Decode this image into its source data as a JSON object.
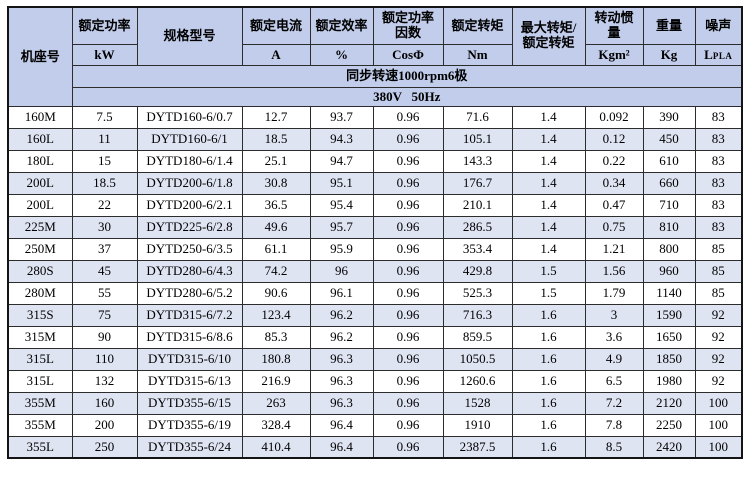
{
  "colors": {
    "header_bg": "#c1cdea",
    "alt_row_bg": "#dfe4f3",
    "border": "#2c2c2c",
    "outer_border": "#141414"
  },
  "table": {
    "header": {
      "frame": "机座号",
      "power_label": "额定功率",
      "power_unit": "kW",
      "model": "规格型号",
      "current_label": "额定电流",
      "current_unit": "A",
      "efficiency_label": "额定效率",
      "efficiency_unit": "%",
      "power_factor_label": "额定功率因数",
      "power_factor_unit": "CosΦ",
      "torque_label": "额定转矩",
      "torque_unit": "Nm",
      "max_torque_ratio": "最大转矩/额定转矩",
      "inertia_label": "转动惯量",
      "inertia_unit": "Kgm²",
      "weight_label": "重量",
      "weight_unit": "Kg",
      "noise_label": "噪声",
      "noise_unit_main": "L",
      "noise_unit_sub": "PLA"
    },
    "banners": {
      "speed": "同步转速1000rpm6极",
      "voltage": "380V   50Hz"
    },
    "rows": [
      [
        "160M",
        "7.5",
        "DYTD160-6/0.7",
        "12.7",
        "93.7",
        "0.96",
        "71.6",
        "1.4",
        "0.092",
        "390",
        "83"
      ],
      [
        "160L",
        "11",
        "DYTD160-6/1",
        "18.5",
        "94.3",
        "0.96",
        "105.1",
        "1.4",
        "0.12",
        "450",
        "83"
      ],
      [
        "180L",
        "15",
        "DYTD180-6/1.4",
        "25.1",
        "94.7",
        "0.96",
        "143.3",
        "1.4",
        "0.22",
        "610",
        "83"
      ],
      [
        "200L",
        "18.5",
        "DYTD200-6/1.8",
        "30.8",
        "95.1",
        "0.96",
        "176.7",
        "1.4",
        "0.34",
        "660",
        "83"
      ],
      [
        "200L",
        "22",
        "DYTD200-6/2.1",
        "36.5",
        "95.4",
        "0.96",
        "210.1",
        "1.4",
        "0.47",
        "710",
        "83"
      ],
      [
        "225M",
        "30",
        "DYTD225-6/2.8",
        "49.6",
        "95.7",
        "0.96",
        "286.5",
        "1.4",
        "0.75",
        "810",
        "83"
      ],
      [
        "250M",
        "37",
        "DYTD250-6/3.5",
        "61.1",
        "95.9",
        "0.96",
        "353.4",
        "1.4",
        "1.21",
        "800",
        "85"
      ],
      [
        "280S",
        "45",
        "DYTD280-6/4.3",
        "74.2",
        "96",
        "0.96",
        "429.8",
        "1.5",
        "1.56",
        "960",
        "85"
      ],
      [
        "280M",
        "55",
        "DYTD280-6/5.2",
        "90.6",
        "96.1",
        "0.96",
        "525.3",
        "1.5",
        "1.79",
        "1140",
        "85"
      ],
      [
        "315S",
        "75",
        "DYTD315-6/7.2",
        "123.4",
        "96.2",
        "0.96",
        "716.3",
        "1.6",
        "3",
        "1590",
        "92"
      ],
      [
        "315M",
        "90",
        "DYTD315-6/8.6",
        "85.3",
        "96.2",
        "0.96",
        "859.5",
        "1.6",
        "3.6",
        "1650",
        "92"
      ],
      [
        "315L",
        "110",
        "DYTD315-6/10",
        "180.8",
        "96.3",
        "0.96",
        "1050.5",
        "1.6",
        "4.9",
        "1850",
        "92"
      ],
      [
        "315L",
        "132",
        "DYTD315-6/13",
        "216.9",
        "96.3",
        "0.96",
        "1260.6",
        "1.6",
        "6.5",
        "1980",
        "92"
      ],
      [
        "355M",
        "160",
        "DYTD355-6/15",
        "263",
        "96.3",
        "0.96",
        "1528",
        "1.6",
        "7.2",
        "2120",
        "100"
      ],
      [
        "355M",
        "200",
        "DYTD355-6/19",
        "328.4",
        "96.4",
        "0.96",
        "1910",
        "1.6",
        "7.8",
        "2250",
        "100"
      ],
      [
        "355L",
        "250",
        "DYTD355-6/24",
        "410.4",
        "96.4",
        "0.96",
        "2387.5",
        "1.6",
        "8.5",
        "2420",
        "100"
      ]
    ]
  }
}
